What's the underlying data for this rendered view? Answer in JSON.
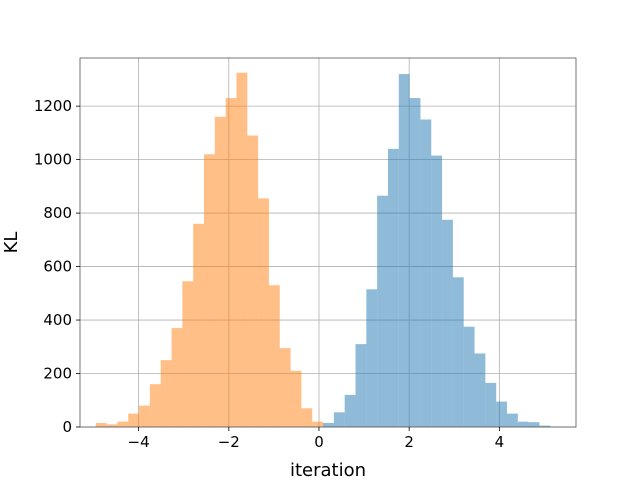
{
  "chart_data": {
    "type": "bar",
    "xlabel": "iteration",
    "ylabel": "KL",
    "xlim": [
      -5.3,
      5.7
    ],
    "ylim": [
      0,
      1380
    ],
    "x_ticks": [
      -4,
      -2,
      0,
      2,
      4
    ],
    "x_tick_labels": [
      "−4",
      "−2",
      "0",
      "2",
      "4"
    ],
    "y_ticks": [
      0,
      200,
      400,
      600,
      800,
      1000,
      1200
    ],
    "y_tick_labels": [
      "0",
      "200",
      "400",
      "600",
      "800",
      "1000",
      "1200"
    ],
    "grid": true,
    "series": [
      {
        "color": "#1f77b4",
        "opacity": 0.5,
        "bins": [
          {
            "x0": 0.09,
            "x1": 0.33,
            "value": 15
          },
          {
            "x0": 0.33,
            "x1": 0.57,
            "value": 55
          },
          {
            "x0": 0.57,
            "x1": 0.81,
            "value": 120
          },
          {
            "x0": 0.81,
            "x1": 1.05,
            "value": 310
          },
          {
            "x0": 1.05,
            "x1": 1.29,
            "value": 515
          },
          {
            "x0": 1.29,
            "x1": 1.53,
            "value": 865
          },
          {
            "x0": 1.53,
            "x1": 1.77,
            "value": 1040
          },
          {
            "x0": 1.77,
            "x1": 2.01,
            "value": 1320
          },
          {
            "x0": 2.01,
            "x1": 2.25,
            "value": 1230
          },
          {
            "x0": 2.25,
            "x1": 2.49,
            "value": 1150
          },
          {
            "x0": 2.49,
            "x1": 2.73,
            "value": 1015
          },
          {
            "x0": 2.73,
            "x1": 2.97,
            "value": 775
          },
          {
            "x0": 2.97,
            "x1": 3.21,
            "value": 560
          },
          {
            "x0": 3.21,
            "x1": 3.45,
            "value": 375
          },
          {
            "x0": 3.45,
            "x1": 3.69,
            "value": 275
          },
          {
            "x0": 3.69,
            "x1": 3.93,
            "value": 165
          },
          {
            "x0": 3.93,
            "x1": 4.17,
            "value": 95
          },
          {
            "x0": 4.17,
            "x1": 4.41,
            "value": 50
          },
          {
            "x0": 4.41,
            "x1": 4.65,
            "value": 20
          },
          {
            "x0": 4.65,
            "x1": 4.89,
            "value": 18
          },
          {
            "x0": 4.89,
            "x1": 5.13,
            "value": 5
          }
        ]
      },
      {
        "color": "#ff7f0e",
        "opacity": 0.5,
        "bins": [
          {
            "x0": -4.95,
            "x1": -4.71,
            "value": 15
          },
          {
            "x0": -4.71,
            "x1": -4.47,
            "value": 10
          },
          {
            "x0": -4.47,
            "x1": -4.23,
            "value": 20
          },
          {
            "x0": -4.23,
            "x1": -3.99,
            "value": 50
          },
          {
            "x0": -3.99,
            "x1": -3.75,
            "value": 80
          },
          {
            "x0": -3.75,
            "x1": -3.51,
            "value": 160
          },
          {
            "x0": -3.51,
            "x1": -3.27,
            "value": 250
          },
          {
            "x0": -3.27,
            "x1": -3.03,
            "value": 370
          },
          {
            "x0": -3.03,
            "x1": -2.79,
            "value": 545
          },
          {
            "x0": -2.79,
            "x1": -2.55,
            "value": 760
          },
          {
            "x0": -2.55,
            "x1": -2.31,
            "value": 1020
          },
          {
            "x0": -2.31,
            "x1": -2.07,
            "value": 1160
          },
          {
            "x0": -2.07,
            "x1": -1.83,
            "value": 1230
          },
          {
            "x0": -1.83,
            "x1": -1.59,
            "value": 1325
          },
          {
            "x0": -1.59,
            "x1": -1.35,
            "value": 1090
          },
          {
            "x0": -1.35,
            "x1": -1.11,
            "value": 855
          },
          {
            "x0": -1.11,
            "x1": -0.87,
            "value": 530
          },
          {
            "x0": -0.87,
            "x1": -0.63,
            "value": 295
          },
          {
            "x0": -0.63,
            "x1": -0.39,
            "value": 210
          },
          {
            "x0": -0.39,
            "x1": -0.15,
            "value": 70
          },
          {
            "x0": -0.15,
            "x1": 0.09,
            "value": 20
          }
        ]
      }
    ]
  }
}
